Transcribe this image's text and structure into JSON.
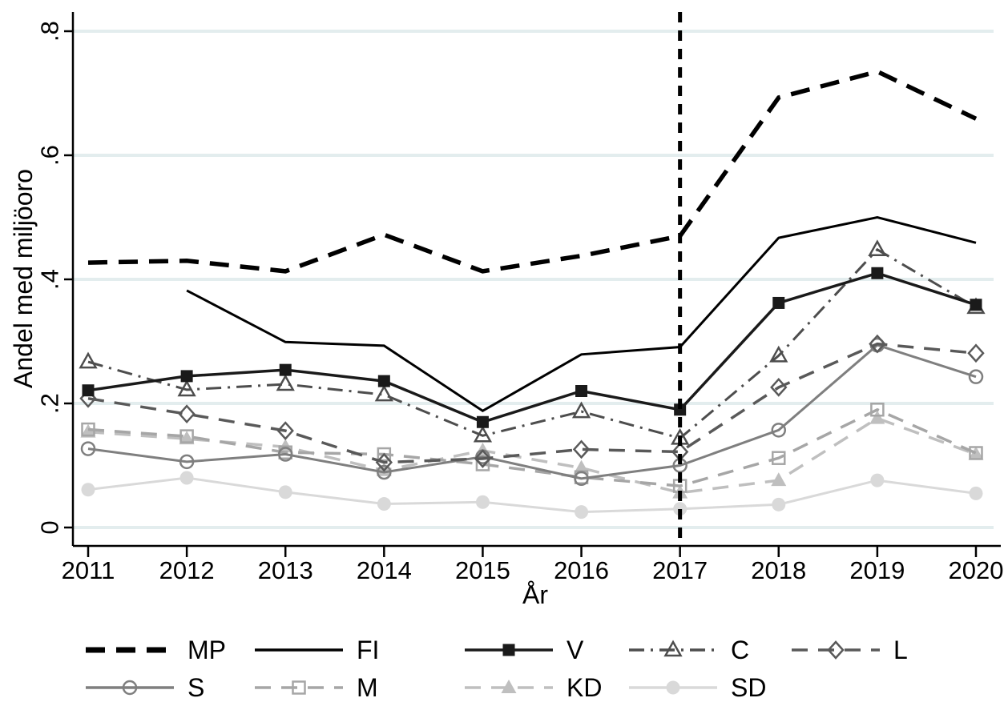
{
  "chart_data": {
    "type": "line",
    "title": "",
    "xlabel": "År",
    "ylabel": "Andel med miljöoro",
    "x": [
      2011,
      2012,
      2013,
      2014,
      2015,
      2016,
      2017,
      2018,
      2019,
      2020
    ],
    "x_tick_labels": [
      "2011",
      "2012",
      "2013",
      "2014",
      "2015",
      "2016",
      "2017",
      "2018",
      "2019",
      "2020"
    ],
    "ylim": [
      0,
      0.8
    ],
    "y_ticks": [
      0,
      0.2,
      0.4,
      0.6,
      0.8
    ],
    "y_tick_labels": [
      "0",
      ".2",
      ".4",
      ".6",
      ".8"
    ],
    "grid": true,
    "gridline_color": "#e3edee",
    "axis_color": "#000000",
    "reference_line": {
      "x": 2017,
      "style": "dashed",
      "color": "#000000"
    },
    "legend_position": "bottom",
    "legend_rows": [
      [
        "MP",
        "FI",
        "V",
        "C",
        "L"
      ],
      [
        "S",
        "M",
        "KD",
        "SD"
      ]
    ],
    "series": [
      {
        "name": "MP",
        "color": "#000000",
        "dash": "long-dash",
        "marker": "none",
        "width": 5.5,
        "values": [
          0.427,
          0.43,
          0.413,
          0.472,
          0.413,
          0.438,
          0.47,
          0.693,
          0.735,
          0.659
        ]
      },
      {
        "name": "FI",
        "color": "#000000",
        "dash": "solid",
        "marker": "none",
        "width": 3,
        "values": [
          null,
          0.382,
          0.299,
          0.293,
          0.188,
          0.279,
          0.291,
          0.467,
          0.5,
          0.459
        ]
      },
      {
        "name": "V",
        "color": "#1a1a1a",
        "dash": "solid",
        "marker": "square-filled",
        "width": 3.5,
        "values": [
          0.221,
          0.244,
          0.254,
          0.236,
          0.17,
          0.22,
          0.19,
          0.362,
          0.41,
          0.359
        ]
      },
      {
        "name": "C",
        "color": "#4d4d4d",
        "dash": "dash-dot",
        "marker": "triangle-open",
        "width": 3,
        "values": [
          0.267,
          0.222,
          0.231,
          0.214,
          0.148,
          0.187,
          0.144,
          0.277,
          0.448,
          0.355
        ]
      },
      {
        "name": "L",
        "color": "#595959",
        "dash": "dash",
        "marker": "diamond-open",
        "width": 3.5,
        "values": [
          0.208,
          0.183,
          0.156,
          0.105,
          0.111,
          0.126,
          0.122,
          0.226,
          0.296,
          0.281
        ]
      },
      {
        "name": "S",
        "color": "#7f7f7f",
        "dash": "solid",
        "marker": "circle-open",
        "width": 3,
        "values": [
          0.127,
          0.106,
          0.118,
          0.089,
          0.114,
          0.079,
          0.1,
          0.157,
          0.294,
          0.243
        ]
      },
      {
        "name": "M",
        "color": "#a6a6a6",
        "dash": "dash",
        "marker": "square-open",
        "width": 3.5,
        "values": [
          0.158,
          0.147,
          0.121,
          0.118,
          0.102,
          0.081,
          0.067,
          0.112,
          0.19,
          0.12
        ]
      },
      {
        "name": "KD",
        "color": "#bfbfbf",
        "dash": "dash",
        "marker": "triangle-filled",
        "width": 3.5,
        "values": [
          0.154,
          0.143,
          0.13,
          0.092,
          0.124,
          0.096,
          0.056,
          0.076,
          0.176,
          0.118
        ]
      },
      {
        "name": "SD",
        "color": "#d9d9d9",
        "dash": "solid",
        "marker": "circle-filled",
        "width": 3,
        "values": [
          0.061,
          0.08,
          0.057,
          0.038,
          0.041,
          0.025,
          0.03,
          0.037,
          0.076,
          0.055
        ]
      }
    ]
  }
}
